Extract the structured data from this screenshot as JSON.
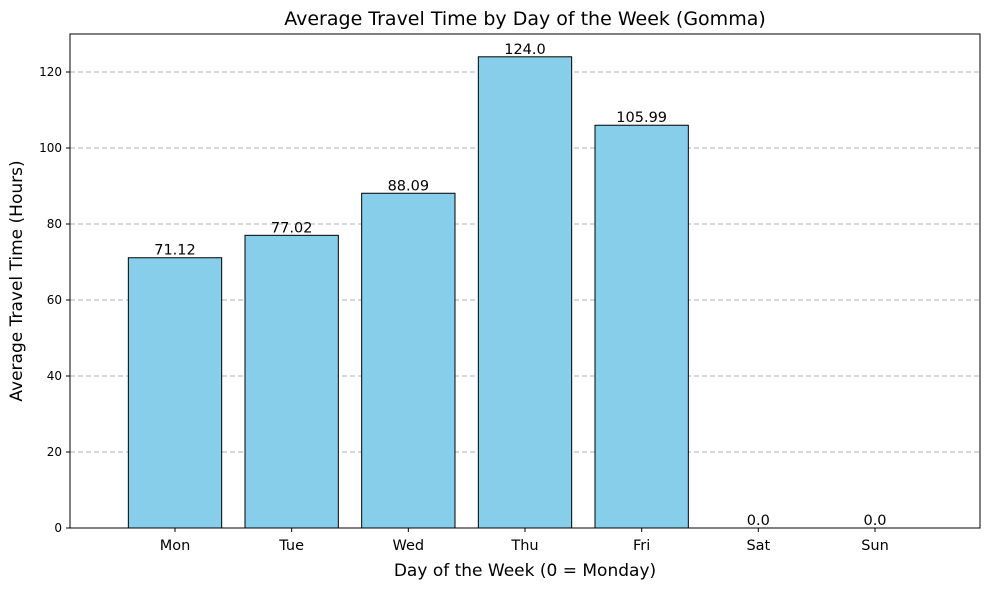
{
  "chart_data": {
    "type": "bar",
    "title": "Average Travel Time by Day of the Week (Gomma)",
    "xlabel": "Day of the Week (0 = Monday)",
    "ylabel": "Average Travel Time (Hours)",
    "categories": [
      "Mon",
      "Tue",
      "Wed",
      "Thu",
      "Fri",
      "Sat",
      "Sun"
    ],
    "values": [
      71.12,
      77.02,
      88.09,
      124.0,
      105.99,
      0.0,
      0.0
    ],
    "value_labels": [
      "71.12",
      "77.02",
      "88.09",
      "124.0",
      "105.99",
      "0.0",
      "0.0"
    ],
    "ylim": [
      0,
      130
    ],
    "yticks": [
      0,
      20,
      40,
      60,
      80,
      100,
      120
    ],
    "grid": "y-dashed",
    "bar_color": "#87CEEB",
    "bar_edge_color": "#000000"
  }
}
